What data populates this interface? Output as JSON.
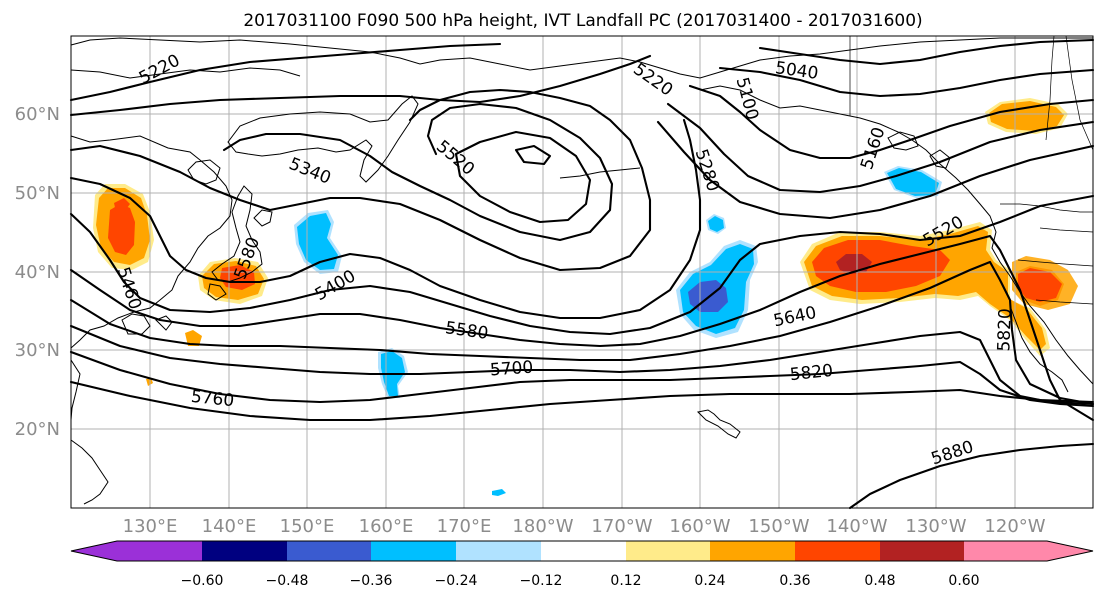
{
  "title": "2017031100 F090 500 hPa height, IVT Landfall PC (2017031400 - 2017031600)",
  "map": {
    "projection": "equirectangular",
    "lon_range": "120°E to 250°E (110°W)",
    "lat_range": "10°N to 70°N",
    "lat_labels": [
      "20°N",
      "30°N",
      "40°N",
      "50°N",
      "60°N"
    ],
    "lon_labels": [
      "130°E",
      "140°E",
      "150°E",
      "160°E",
      "170°E",
      "180°W",
      "170°W",
      "160°W",
      "150°W",
      "140°W",
      "130°W",
      "120°W"
    ],
    "grid": true
  },
  "contour_labels": {
    "l5040": "5040",
    "l5100": "5100",
    "l5160": "5160",
    "l5220a": "5220",
    "l5220b": "5220",
    "l5280": "5280",
    "l5340": "5340",
    "l5400": "5400",
    "l5460": "5460",
    "l5520a": "5520",
    "l5520b": "5520",
    "l5580a": "5580",
    "l5580b": "5580",
    "l5640": "5640",
    "l5700": "5700",
    "l5760": "5760",
    "l5820a": "5820",
    "l5820b": "5820",
    "l5880": "5880"
  },
  "colorbar": {
    "ticks": [
      "−0.60",
      "−0.48",
      "−0.36",
      "−0.24",
      "−0.12",
      "0.12",
      "0.24",
      "0.36",
      "0.48",
      "0.60"
    ],
    "colors": [
      "#9b30d8",
      "#000080",
      "#3a5bd0",
      "#00bfff",
      "#b0e2ff",
      "#ffffff",
      "#ffeb8a",
      "#ffa500",
      "#ff4500",
      "#b22222",
      "#ff88aa"
    ]
  },
  "fill_colors": {
    "neg_light": "#b0e2ff",
    "neg_mid": "#00bfff",
    "neg_strong": "#3a5bd0",
    "pos_light": "#ffeb8a",
    "pos_mid": "#ffa500",
    "pos_strong": "#ff4500",
    "pos_max": "#b22222"
  }
}
